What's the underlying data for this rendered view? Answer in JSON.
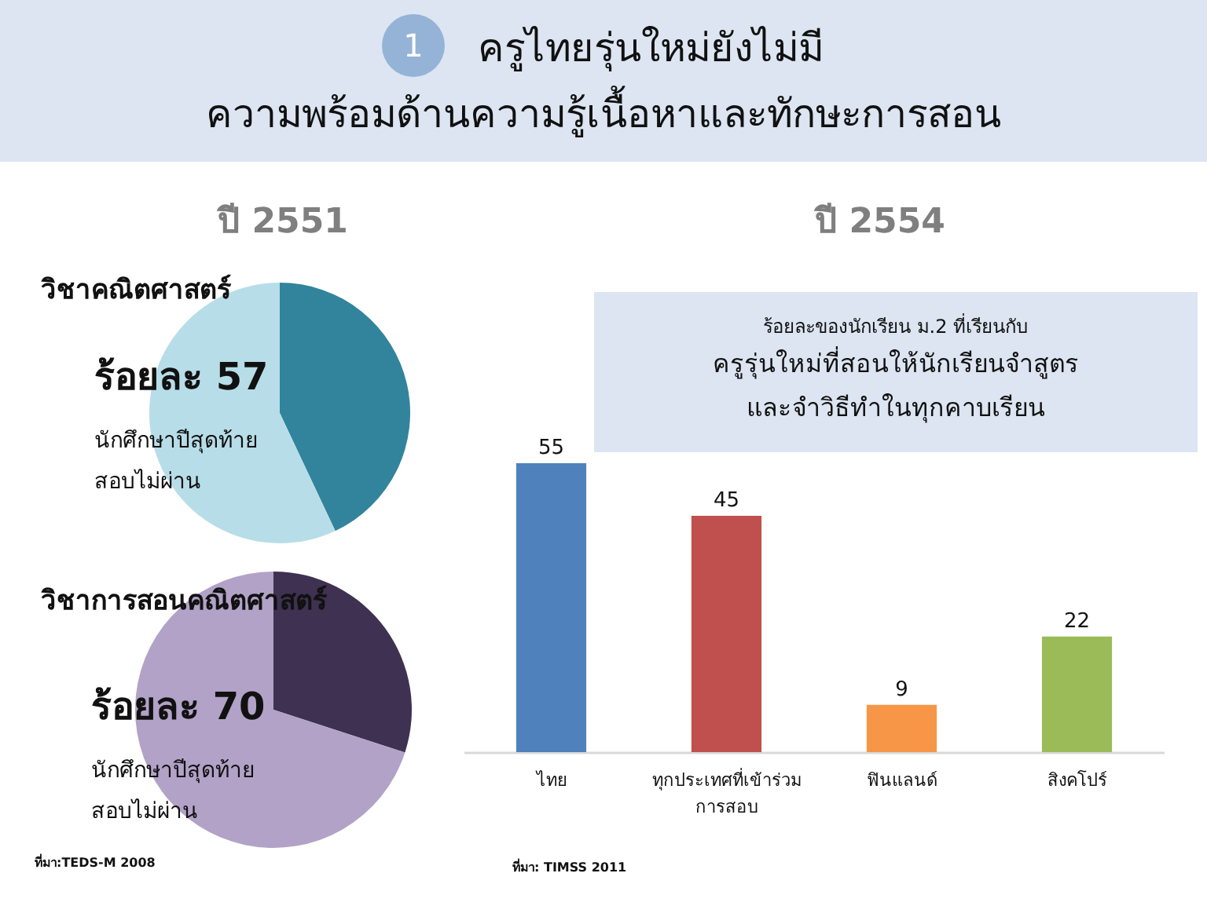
{
  "chart_data": [
    {
      "type": "other",
      "title": "ครูไทยรุ่นใหม่ยังไม่มี\nความพร้อมด้านความรู้เนื้อหาและทักษะการสอน",
      "annotations": [
        "1",
        "ปี 2551"
      ]
    },
    {
      "type": "pie",
      "title": "วิชาคณิตศาสตร์",
      "categories": [
        null,
        null
      ],
      "values": [
        43,
        57
      ],
      "colors": [
        "#31849b",
        "#b7dde8"
      ],
      "annotations": [
        "ร้อยละ 57",
        "นักศึกษาปีสุดท้าย\nสอบไม่ผ่าน"
      ],
      "legend": false
    },
    {
      "type": "pie",
      "title": "วิชาการสอนคณิตศาสตร์",
      "categories": [
        null,
        null
      ],
      "values": [
        30,
        70
      ],
      "colors": [
        "#3f3151",
        "#b2a2c7"
      ],
      "annotations": [
        "ร้อยละ 70",
        "นักศึกษาปีสุดท้าย\nสอบไม่ผ่าน",
        "ที่มา:TEDS-M 2008"
      ],
      "legend": false
    },
    {
      "type": "bar",
      "title": "ปี 2554",
      "subtitle": "ร้อยละของนักเรียน ม.2 ที่เรียนกับ\nครูรุ่นใหม่ที่สอนให้นักเรียนจำสูตร\nและจำวิธีทำในทุกคาบเรียน",
      "categories": [
        "ไทย",
        "ทุกประเทศที่เข้าร่วม\nการสอบ",
        "ฟินแลนด์",
        "สิงคโปร์"
      ],
      "values": [
        55,
        45,
        9,
        22
      ],
      "colors": [
        "#4f81bd",
        "#c0504d",
        "#f79646",
        "#9bbb59"
      ],
      "data_labels": true,
      "grid": false,
      "legend": false,
      "annotations": [
        "ที่มา: TIMSS 2011"
      ]
    }
  ]
}
